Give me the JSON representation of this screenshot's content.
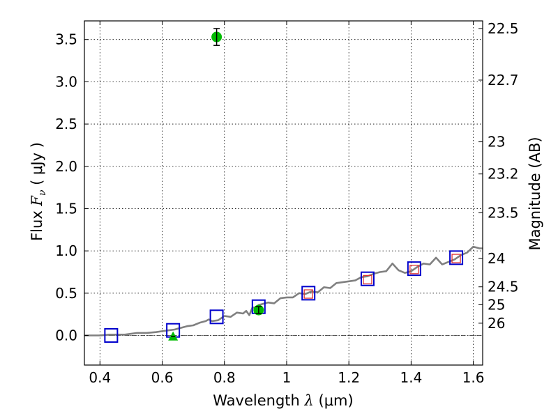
{
  "chart_data": {
    "type": "scatter",
    "xlabel": {
      "prefix": "Wavelength  ",
      "symbol": "λ",
      "units": " (μm)"
    },
    "ylabel": {
      "prefix": "Flux  ",
      "symbol": "F",
      "subscript": "ν",
      "units": "  ( μJy )"
    },
    "y2label": "Magnitude (AB)",
    "xlim": [
      0.35,
      1.63
    ],
    "ylim": [
      -0.35,
      3.72
    ],
    "grid": true,
    "xticks": [
      {
        "v": 0.4,
        "label": "0.4"
      },
      {
        "v": 0.6,
        "label": "0.6"
      },
      {
        "v": 0.8,
        "label": "0.8"
      },
      {
        "v": 1.0,
        "label": "1"
      },
      {
        "v": 1.2,
        "label": "1.2"
      },
      {
        "v": 1.4,
        "label": "1.4"
      },
      {
        "v": 1.6,
        "label": "1.6"
      }
    ],
    "yticks": [
      {
        "v": 0.0,
        "label": "0.0"
      },
      {
        "v": 0.5,
        "label": "0.5"
      },
      {
        "v": 1.0,
        "label": "1.0"
      },
      {
        "v": 1.5,
        "label": "1.5"
      },
      {
        "v": 2.0,
        "label": "2.0"
      },
      {
        "v": 2.5,
        "label": "2.5"
      },
      {
        "v": 3.0,
        "label": "3.0"
      },
      {
        "v": 3.5,
        "label": "3.5"
      }
    ],
    "magnitude_ticks": [
      {
        "label": "22.5",
        "flux": 3.63
      },
      {
        "label": "22.7",
        "flux": 3.02
      },
      {
        "label": "23",
        "flux": 2.29
      },
      {
        "label": "23.2",
        "flux": 1.91
      },
      {
        "label": "23.5",
        "flux": 1.45
      },
      {
        "label": "24",
        "flux": 0.91
      },
      {
        "label": "24.5",
        "flux": 0.575
      },
      {
        "label": "25",
        "flux": 0.363
      },
      {
        "label": "26",
        "flux": 0.145
      }
    ],
    "zero_line": 0,
    "series": [
      {
        "kind": "line",
        "color": "#808080",
        "x": [
          0.35,
          0.38,
          0.4,
          0.43,
          0.45,
          0.48,
          0.5,
          0.52,
          0.55,
          0.58,
          0.6,
          0.62,
          0.64,
          0.65,
          0.66,
          0.68,
          0.7,
          0.72,
          0.74,
          0.75,
          0.76,
          0.78,
          0.8,
          0.82,
          0.84,
          0.86,
          0.87,
          0.88,
          0.89,
          0.9,
          0.91,
          0.92,
          0.94,
          0.96,
          0.98,
          1.0,
          1.02,
          1.04,
          1.06,
          1.08,
          1.1,
          1.12,
          1.14,
          1.16,
          1.18,
          1.2,
          1.22,
          1.24,
          1.26,
          1.28,
          1.3,
          1.32,
          1.34,
          1.36,
          1.38,
          1.4,
          1.42,
          1.44,
          1.46,
          1.48,
          1.5,
          1.52,
          1.54,
          1.56,
          1.58,
          1.6,
          1.62,
          1.63
        ],
        "y": [
          0.0,
          0.0,
          0.0,
          0.01,
          0.01,
          0.01,
          0.02,
          0.03,
          0.03,
          0.04,
          0.05,
          0.06,
          0.07,
          0.08,
          0.09,
          0.11,
          0.12,
          0.15,
          0.17,
          0.19,
          0.17,
          0.18,
          0.23,
          0.22,
          0.27,
          0.26,
          0.29,
          0.24,
          0.33,
          0.33,
          0.36,
          0.37,
          0.39,
          0.38,
          0.44,
          0.45,
          0.45,
          0.5,
          0.49,
          0.52,
          0.51,
          0.57,
          0.56,
          0.62,
          0.63,
          0.64,
          0.65,
          0.69,
          0.7,
          0.73,
          0.75,
          0.76,
          0.85,
          0.77,
          0.74,
          0.76,
          0.81,
          0.85,
          0.84,
          0.92,
          0.84,
          0.87,
          0.9,
          0.95,
          0.98,
          1.05,
          1.03,
          1.03
        ]
      },
      {
        "kind": "square",
        "color": "#0000cc",
        "x": [
          0.436,
          0.635,
          0.775,
          0.91,
          1.07,
          1.26,
          1.41,
          1.545
        ],
        "y": [
          0.0,
          0.06,
          0.22,
          0.34,
          0.5,
          0.67,
          0.79,
          0.92
        ]
      },
      {
        "kind": "small-square",
        "color": "#dd3333",
        "x": [
          1.07,
          1.26,
          1.41,
          1.545
        ],
        "y": [
          0.49,
          0.66,
          0.78,
          0.91
        ]
      },
      {
        "kind": "circle",
        "color": "#00bb00",
        "x": [
          0.775,
          0.91
        ],
        "y": [
          3.53,
          0.3
        ],
        "err": [
          0.1,
          0.04
        ]
      },
      {
        "kind": "triangle",
        "color": "#00bb00",
        "x": [
          0.635
        ],
        "y": [
          -0.01
        ]
      }
    ]
  }
}
